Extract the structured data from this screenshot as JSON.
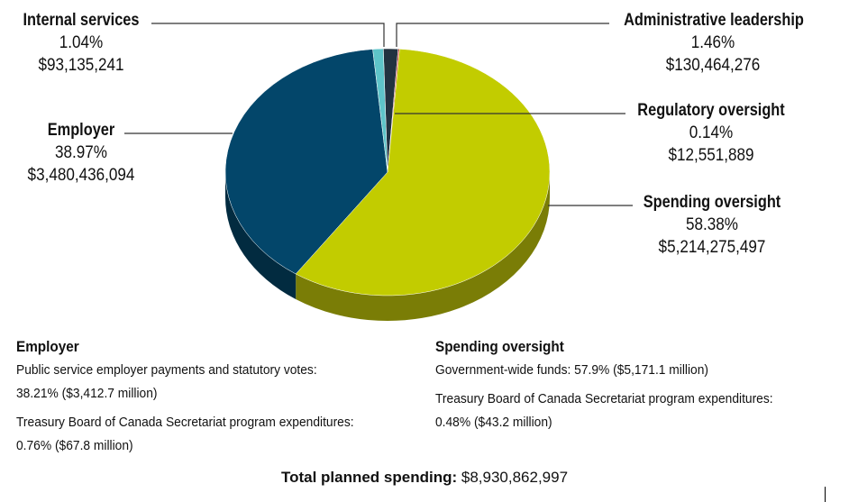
{
  "chart_data": {
    "type": "pie",
    "three_d": true,
    "slices": [
      {
        "key": "admin",
        "label": "Administrative leadership",
        "percent_text": "1.46%",
        "amount_text": "$130,464,276",
        "value": 1.46,
        "color": "#223240",
        "side": "#101a22"
      },
      {
        "key": "reg",
        "label": "Regulatory oversight",
        "percent_text": "0.14%",
        "amount_text": "$12,551,889",
        "value": 0.14,
        "color": "#c0392b",
        "side": "#7a1f16"
      },
      {
        "key": "spend",
        "label": "Spending oversight",
        "percent_text": "58.38%",
        "amount_text": "$5,214,275,497",
        "value": 58.38,
        "color": "#c2cc00",
        "side": "#7a7d06"
      },
      {
        "key": "emp",
        "label": "Employer",
        "percent_text": "38.97%",
        "amount_text": "$3,480,436,094",
        "value": 38.97,
        "color": "#03466a",
        "side": "#022b40"
      },
      {
        "key": "int",
        "label": "Internal services",
        "percent_text": "1.04%",
        "amount_text": "$93,135,241",
        "value": 1.04,
        "color": "#5ec4c9",
        "side": "#3a8a8d"
      }
    ]
  },
  "notes": {
    "employer": {
      "heading": "Employer",
      "line1": "Public service employer payments and statutory votes:",
      "line2": "38.21% ($3,412.7 million)",
      "line3": "Treasury Board of Canada Secretariat program expenditures:",
      "line4": "0.76% ($67.8 million)"
    },
    "spending": {
      "heading": "Spending oversight",
      "line1": "Government-wide funds: 57.9% ($5,171.1 million)",
      "line2": "Treasury Board of Canada Secretariat program expenditures:",
      "line3": "0.48% ($43.2 million)"
    }
  },
  "total": {
    "label": "Total planned spending:",
    "value": "$8,930,862,997"
  }
}
